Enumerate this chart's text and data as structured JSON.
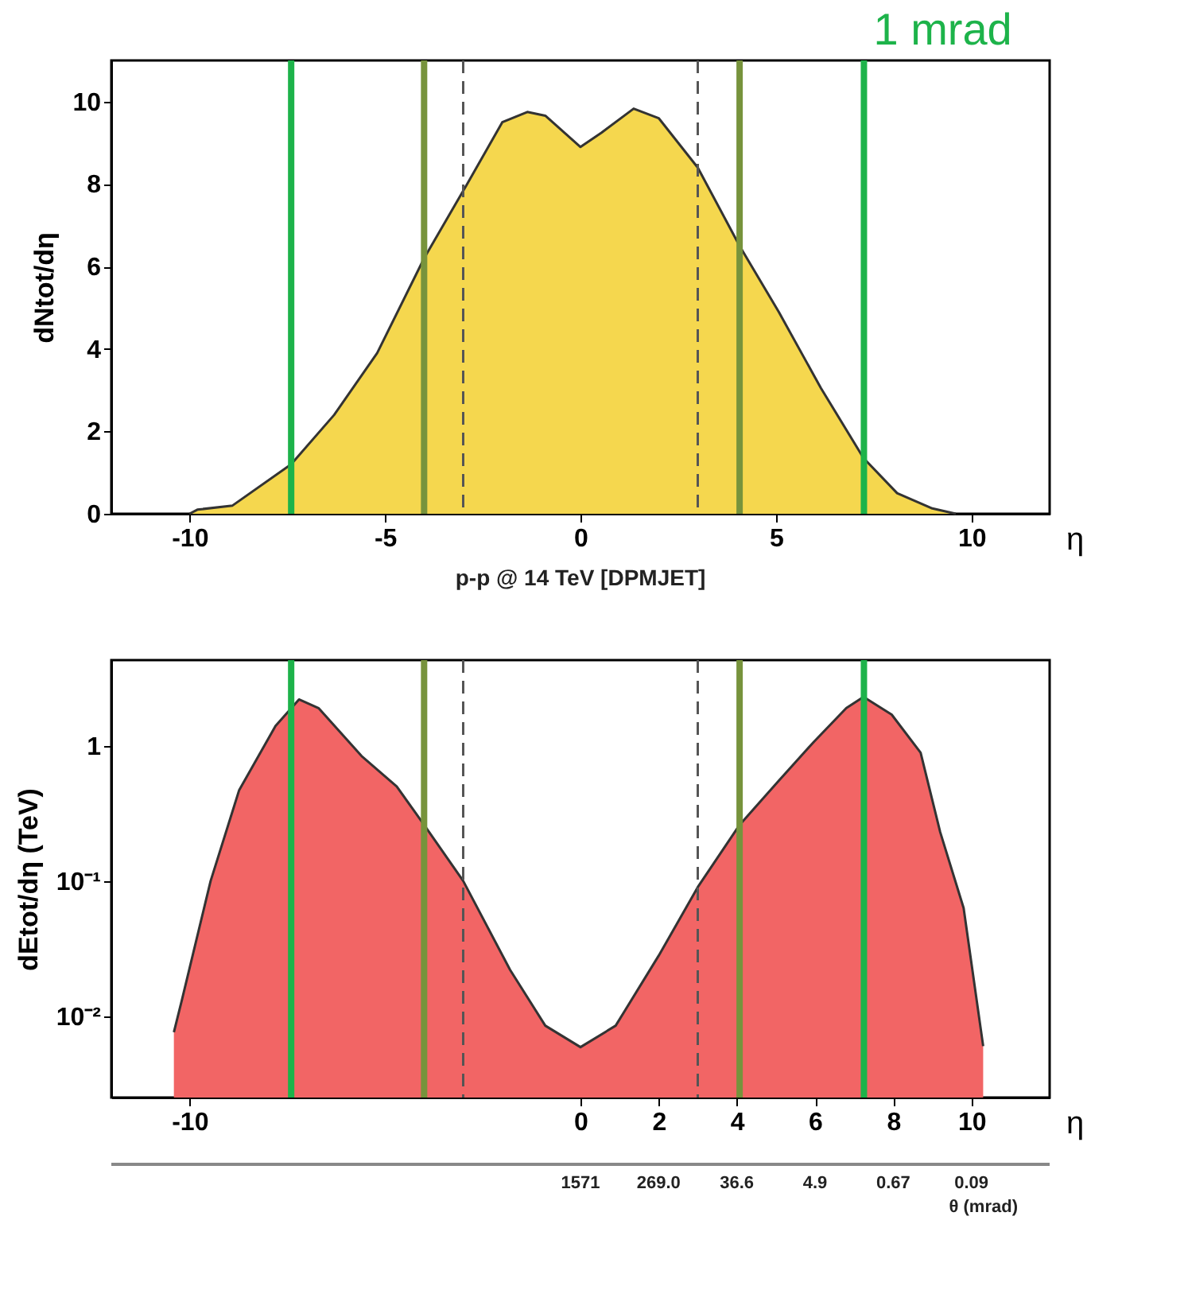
{
  "chart_data": [
    {
      "type": "area",
      "xlabel": "η",
      "ylabel": "dNtot/dη",
      "xlim": [
        -12,
        12
      ],
      "ylim": [
        0,
        11
      ],
      "xticks": [
        -10,
        -5,
        0,
        5,
        10
      ],
      "yticks": [
        0,
        2,
        4,
        6,
        8,
        10
      ],
      "color": "#f5d74e",
      "x": [
        -10,
        -9.8,
        -8.9,
        -7.4,
        -6.3,
        -5.2,
        -4.0,
        -2.9,
        -2.0,
        -1.36,
        -0.9,
        0,
        0.54,
        1.36,
        2.0,
        3.0,
        4.07,
        5.07,
        6.15,
        7.24,
        8.1,
        9.0,
        9.6
      ],
      "values": [
        0,
        0.1,
        0.2,
        1.2,
        2.4,
        3.9,
        6.2,
        8.0,
        9.5,
        9.75,
        9.66,
        8.9,
        9.25,
        9.83,
        9.6,
        8.4,
        6.5,
        4.9,
        3.05,
        1.35,
        0.5,
        0.13,
        0
      ],
      "annotations": [
        "p-p @ 14 TeV [DPMJET]"
      ],
      "ref_lines": [
        {
          "axis": "x",
          "value": -3,
          "color": "#555555",
          "line_style": "dashed"
        },
        {
          "axis": "x",
          "value": 3,
          "color": "#555555",
          "line_style": "dashed"
        },
        {
          "axis": "x",
          "value": -7.4,
          "color": "#1db34a",
          "line_style": "solid"
        },
        {
          "axis": "x",
          "value": -4.0,
          "color": "#77933c",
          "line_style": "solid"
        },
        {
          "axis": "x",
          "value": 4.07,
          "color": "#77933c",
          "line_style": "solid"
        },
        {
          "axis": "x",
          "value": 7.25,
          "color": "#1db34a",
          "line_style": "solid",
          "label": "1 mrad"
        }
      ]
    },
    {
      "type": "area",
      "log": "y",
      "xlabel": "η",
      "ylabel": "dEtot/dη (TeV)",
      "xlim": [
        -12,
        12
      ],
      "ylim": [
        0.0025,
        4.3
      ],
      "xticks": [
        -10,
        0,
        2,
        4,
        6,
        8,
        10
      ],
      "yticks": [
        {
          "value": 0.01,
          "label": "10⁻²"
        },
        {
          "value": 0.1,
          "label": "10⁻¹"
        },
        1
      ],
      "color": "#f26565",
      "x2label": "θ (mrad)",
      "annotations": [
        "1571",
        "269.0",
        "36.6",
        "4.9",
        "0.67",
        "0.09"
      ],
      "x": [
        -10.4,
        -10.2,
        -9.46,
        -8.73,
        -7.8,
        -7.2,
        -6.7,
        -5.6,
        -4.7,
        -4.0,
        -3.0,
        -1.8,
        -0.9,
        0,
        0.9,
        2.0,
        3.0,
        4.07,
        5.07,
        5.97,
        6.8,
        7.24,
        7.96,
        8.7,
        9.2,
        9.8,
        10.3
      ],
      "values": [
        0.0076,
        0.013,
        0.1,
        0.47,
        1.4,
        2.2,
        1.9,
        0.84,
        0.5,
        0.26,
        0.1,
        0.022,
        0.0085,
        0.0059,
        0.0085,
        0.028,
        0.09,
        0.26,
        0.55,
        1.07,
        1.9,
        2.3,
        1.7,
        0.89,
        0.23,
        0.063,
        0.006
      ],
      "ref_lines": [
        {
          "axis": "x",
          "value": -3,
          "color": "#555555",
          "line_style": "dashed"
        },
        {
          "axis": "x",
          "value": 3,
          "color": "#555555",
          "line_style": "dashed"
        },
        {
          "axis": "x",
          "value": -7.4,
          "color": "#1db34a",
          "line_style": "solid"
        },
        {
          "axis": "x",
          "value": -4.0,
          "color": "#77933c",
          "line_style": "solid"
        },
        {
          "axis": "x",
          "value": 4.07,
          "color": "#77933c",
          "line_style": "solid"
        },
        {
          "axis": "x",
          "value": 7.25,
          "color": "#1db34a",
          "line_style": "solid"
        }
      ]
    }
  ]
}
